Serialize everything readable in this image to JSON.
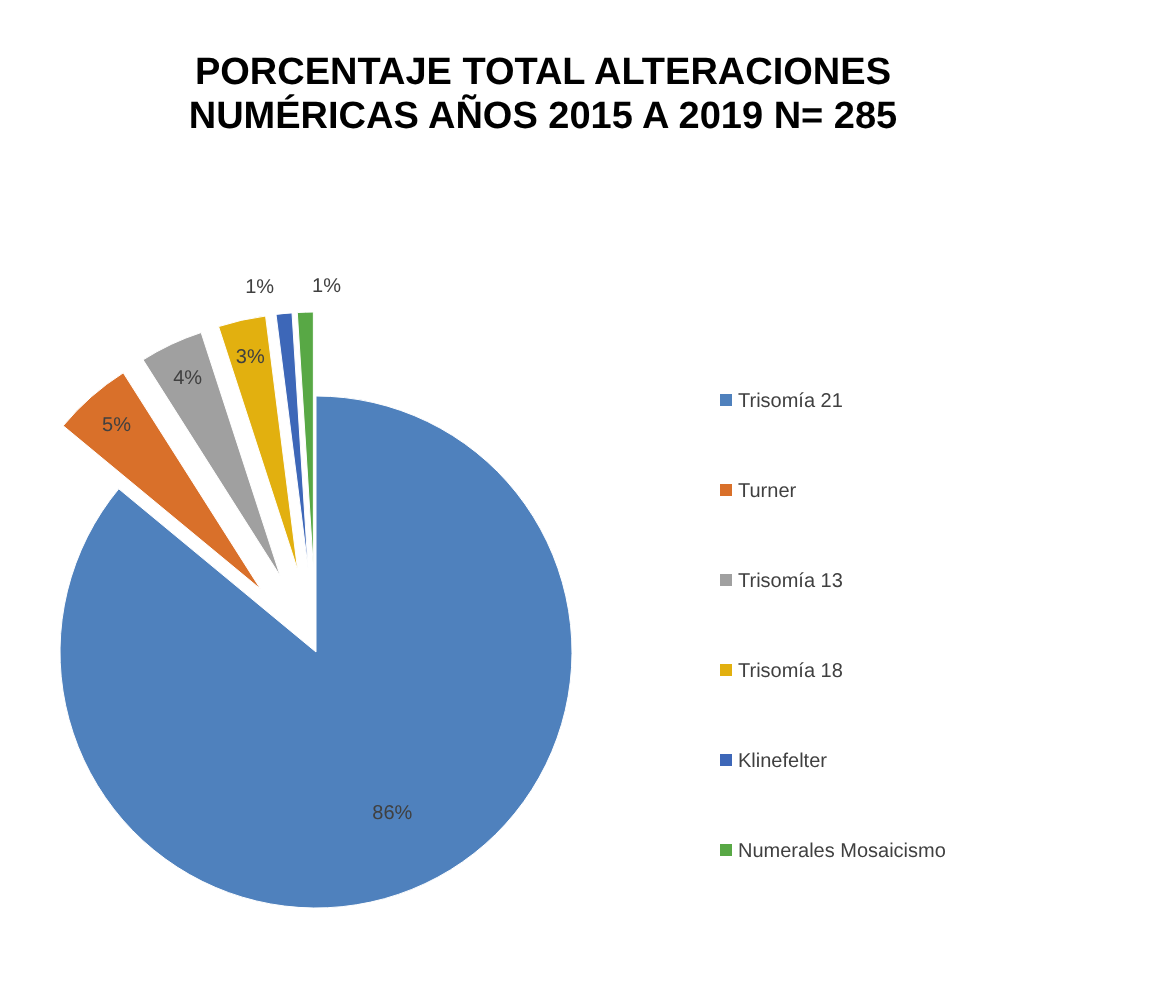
{
  "chart_data": {
    "type": "pie",
    "title": "PORCENTAJE TOTAL ALTERACIONES NUMÉRICAS AÑOS 2015 A 2019 N= 285",
    "categories": [
      "Trisomía 21",
      "Turner",
      "Trisomía 13",
      "Trisomía 18",
      "Klinefelter",
      "Numerales Mosaicismo"
    ],
    "values": [
      86,
      5,
      4,
      3,
      1,
      1
    ],
    "colors": [
      "#4f81bd",
      "#d9702a",
      "#a0a0a0",
      "#e2b00f",
      "#3d67b8",
      "#58a845"
    ],
    "value_labels": [
      "86%",
      "5%",
      "4%",
      "3%",
      "1%",
      "1%"
    ],
    "legend": "right"
  }
}
